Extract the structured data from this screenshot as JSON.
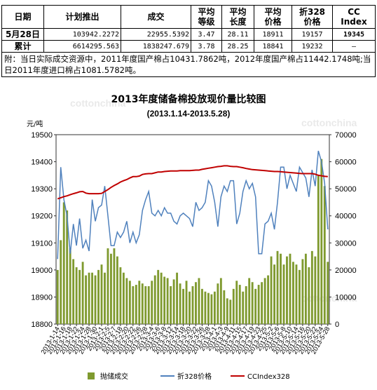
{
  "watermark": "cottonchina",
  "table": {
    "headers": [
      "日期",
      "计划推出",
      "成交",
      "平均\n等级",
      "平均\n长度",
      "平均\n价格",
      "折328\n价格",
      "CC\nIndex"
    ],
    "rows": [
      {
        "label": "5月28日",
        "cells": [
          "103942.2272",
          "22955.5392",
          "3.47",
          "28.11",
          "18911",
          "19157",
          "19345"
        ]
      },
      {
        "label": "累计",
        "cells": [
          "6614295.563",
          "1838247.679",
          "3.78",
          "28.25",
          "18841",
          "19232",
          "—"
        ]
      }
    ],
    "note": "附：当日实际成交资源中，2011年度国产棉占10431.7862吨，2012年度国产棉占11442.1748吨;当日2011年度进口棉占1081.5782吨。"
  },
  "chart_data": {
    "type": "bar+line",
    "title": "2013年度储备棉投放现价量比较图",
    "subtitle": "(2013.1.14-2013.5.28)",
    "ylabel": "元/吨",
    "ylim": [
      18800,
      19500
    ],
    "yticks": [
      18800,
      18900,
      19000,
      19100,
      19200,
      19300,
      19400,
      19500
    ],
    "y2lim": [
      0,
      70000
    ],
    "y2ticks": [
      0,
      10000,
      20000,
      30000,
      40000,
      50000,
      60000,
      70000
    ],
    "categories": [
      "2013-1-14",
      "2013-1-15",
      "2013-1-16",
      "2013-1-17",
      "2013-1-18",
      "2013-1-21",
      "2013-1-22",
      "2013-1-23",
      "2013-1-24",
      "2013-1-25",
      "2013-1-28",
      "2013-1-29",
      "2013-1-30",
      "2013-1-31",
      "2013-2-1",
      "2013-2-4",
      "2013-2-5",
      "2013-2-6",
      "2013-2-7",
      "2013-2-8",
      "2013-2-18",
      "2013-2-19",
      "2013-2-20",
      "2013-2-21",
      "2013-2-22",
      "2013-2-25",
      "2013-2-26",
      "2013-2-27",
      "2013-2-28",
      "2013-3-1",
      "2013-3-4",
      "2013-3-5",
      "2013-3-6",
      "2013-3-7",
      "2013-3-8",
      "2013-3-11",
      "2013-3-12",
      "2013-3-13",
      "2013-3-14",
      "2013-3-15",
      "2013-3-18",
      "2013-3-19",
      "2013-3-20",
      "2013-3-21",
      "2013-3-22",
      "2013-3-25",
      "2013-3-26",
      "2013-3-27",
      "2013-3-28",
      "2013-3-29",
      "2013-4-1",
      "2013-4-2",
      "2013-4-3",
      "2013-4-8",
      "2013-4-9",
      "2013-4-10",
      "2013-4-11",
      "2013-4-12",
      "2013-4-15",
      "2013-4-16",
      "2013-4-17",
      "2013-4-18",
      "2013-4-19",
      "2013-4-22",
      "2013-4-23",
      "2013-4-24",
      "2013-4-25",
      "2013-4-26",
      "2013-5-2",
      "2013-5-3",
      "2013-5-6",
      "2013-5-7",
      "2013-5-8",
      "2013-5-9",
      "2013-5-10",
      "2013-5-13",
      "2013-5-14",
      "2013-5-15",
      "2013-5-16",
      "2013-5-17",
      "2013-5-20",
      "2013-5-21",
      "2013-5-22",
      "2013-5-23",
      "2013-5-24",
      "2013-5-27",
      "2013-5-28"
    ],
    "tick_labels": [
      "2013-1-14",
      "2013-1-16",
      "2013-1-18",
      "2013-1-22",
      "2013-1-24",
      "2013-1-28",
      "2013-1-30",
      "2013-2-1",
      "2013-2-5",
      "2013-2-7",
      "2013-2-18",
      "2013-2-20",
      "2013-2-22",
      "2013-2-26",
      "2013-2-28",
      "2013-3-4",
      "2013-3-6",
      "2013-3-8",
      "2013-3-12",
      "2013-3-14",
      "2013-3-18",
      "2013-3-20",
      "2013-3-22",
      "2013-3-26",
      "2013-3-28",
      "2013-4-1",
      "2013-4-3",
      "2013-4-9",
      "2013-4-11",
      "2013-4-15",
      "2013-4-17",
      "2013-4-19",
      "2013-4-23",
      "2013-4-25",
      "2013-5-2",
      "2013-5-6",
      "2013-5-8",
      "2013-5-10",
      "2013-5-14",
      "2013-5-16",
      "2013-5-20",
      "2013-5-22",
      "2013-5-24",
      "2013-5-28"
    ],
    "series": [
      {
        "name": "抛储成交",
        "axis": "right",
        "type": "bar",
        "color": "#7f9a2f",
        "values": [
          20000,
          31000,
          45000,
          42000,
          28000,
          24000,
          21000,
          20000,
          23000,
          18000,
          19000,
          19000,
          18000,
          20000,
          22000,
          19000,
          28000,
          26000,
          28000,
          25000,
          21000,
          19000,
          17000,
          16000,
          14000,
          14500,
          16000,
          15000,
          14000,
          14000,
          16000,
          18000,
          20000,
          19000,
          17500,
          17000,
          14000,
          16500,
          19000,
          15000,
          13000,
          16000,
          12000,
          14000,
          15500,
          17000,
          13000,
          12000,
          11500,
          11000,
          12000,
          15000,
          17000,
          12500,
          9500,
          9000,
          13000,
          16000,
          14500,
          12000,
          14000,
          17000,
          15500,
          13000,
          14500,
          15500,
          17000,
          18000,
          25000,
          22000,
          27000,
          26000,
          22000,
          25000,
          26000,
          23000,
          22000,
          20000,
          24000,
          26000,
          21000,
          27000,
          25000,
          55000,
          61000,
          51000,
          23000
        ]
      },
      {
        "name": "折328价格",
        "axis": "left",
        "type": "line",
        "color": "#4f81bd",
        "values": [
          19040,
          19380,
          19260,
          19200,
          19060,
          19170,
          19090,
          19190,
          19080,
          19110,
          19070,
          19260,
          19180,
          19230,
          19240,
          19310,
          19200,
          19090,
          19090,
          19140,
          19120,
          19140,
          19180,
          19100,
          19140,
          19100,
          19130,
          19220,
          19260,
          19290,
          19210,
          19200,
          19220,
          19200,
          19230,
          19210,
          19210,
          19180,
          19170,
          19200,
          19210,
          19200,
          19190,
          19160,
          19250,
          19220,
          19230,
          19250,
          19330,
          19310,
          19250,
          19160,
          19270,
          19310,
          19290,
          19330,
          19330,
          19170,
          19210,
          19290,
          19330,
          19300,
          19320,
          19270,
          19060,
          19060,
          19170,
          19180,
          19210,
          19150,
          19250,
          19380,
          19380,
          19300,
          19350,
          19320,
          19290,
          19380,
          19360,
          19340,
          19270,
          19370,
          19310,
          19440,
          19400,
          19320,
          19150
        ]
      },
      {
        "name": "CCIndex328",
        "axis": "left",
        "type": "line",
        "color": "#c00000",
        "values": [
          19263,
          19267,
          19271,
          19274,
          19278,
          19282,
          19285,
          19289,
          19290,
          19284,
          19282,
          19282,
          19282,
          19282,
          19283,
          19290,
          19297,
          19305,
          19312,
          19318,
          19325,
          19330,
          19334,
          19340,
          19345,
          19345,
          19347,
          19353,
          19355,
          19356,
          19356,
          19359,
          19362,
          19362,
          19364,
          19365,
          19366,
          19366,
          19366,
          19367,
          19367,
          19367,
          19367,
          19368,
          19369,
          19369,
          19372,
          19374,
          19376,
          19378,
          19380,
          19382,
          19383,
          19385,
          19385,
          19383,
          19382,
          19382,
          19380,
          19378,
          19375,
          19373,
          19371,
          19370,
          19369,
          19368,
          19367,
          19366,
          19365,
          19364,
          19364,
          19363,
          19362,
          19361,
          19360,
          19359,
          19358,
          19357,
          19356,
          19356,
          19356,
          19356,
          19354,
          19350,
          19348,
          19346,
          19345
        ]
      }
    ],
    "legend": {
      "position": "bottom"
    }
  }
}
